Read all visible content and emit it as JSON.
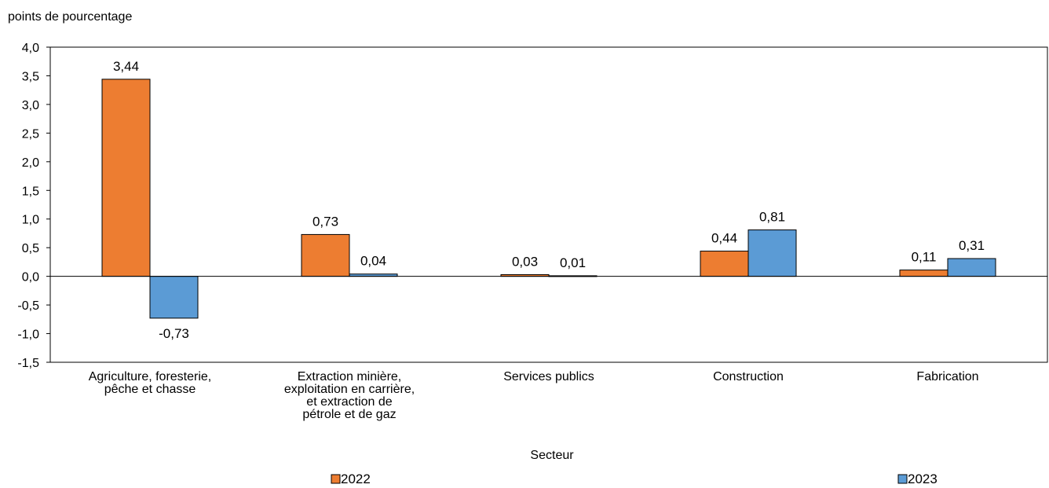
{
  "chart_data": {
    "type": "bar",
    "ylabel": "points de pourcentage",
    "xlabel": "Secteur",
    "ylim": [
      -1.5,
      4.0
    ],
    "ytick_step": 0.5,
    "yticks": [
      "4,0",
      "3,5",
      "3,0",
      "2,5",
      "2,0",
      "1,5",
      "1,0",
      "0,5",
      "0,0",
      "-0,5",
      "-1,0",
      "-1,5"
    ],
    "categories": [
      [
        "Agriculture, foresterie,",
        "pêche et chasse"
      ],
      [
        "Extraction minière,",
        "exploitation en carrière,",
        "et extraction de",
        "pétrole et de gaz"
      ],
      [
        "Services publics"
      ],
      [
        "Construction"
      ],
      [
        "Fabrication"
      ]
    ],
    "series": [
      {
        "name": "2022",
        "color": "#ED7D31",
        "values": [
          3.44,
          0.73,
          0.03,
          0.44,
          0.11
        ],
        "labels": [
          "3,44",
          "0,73",
          "0,03",
          "0,44",
          "0,11"
        ]
      },
      {
        "name": "2023",
        "color": "#5B9BD5",
        "values": [
          -0.73,
          0.04,
          0.01,
          0.81,
          0.31
        ],
        "labels": [
          "-0,73",
          "0,04",
          "0,01",
          "0,81",
          "0,31"
        ]
      }
    ],
    "grid": false,
    "legend_position": "bottom"
  }
}
